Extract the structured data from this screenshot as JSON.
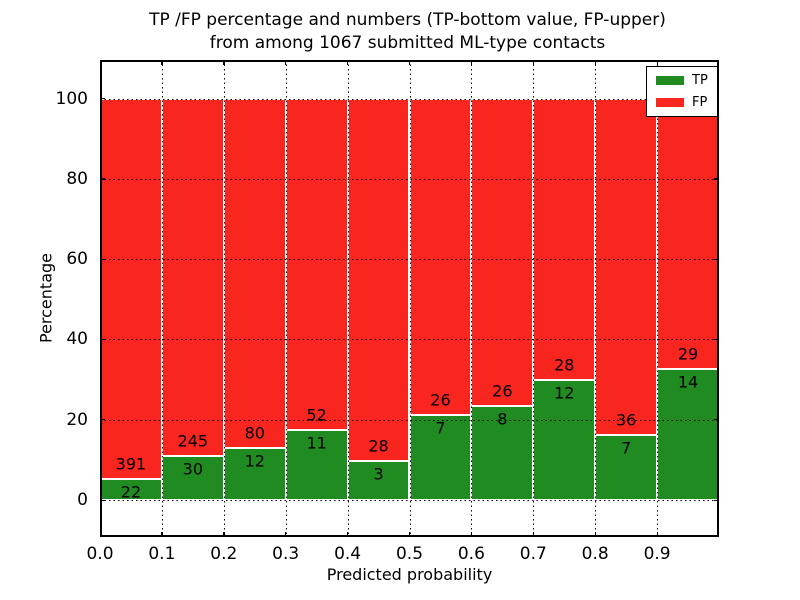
{
  "figure": {
    "title_line1": "TP /FP percentage and numbers (TP-bottom value, FP-upper)",
    "title_line2": "from among 1067 submitted ML-type contacts"
  },
  "chart_data": {
    "type": "bar",
    "subtype": "stacked-percentage-histogram",
    "title": "TP /FP percentage and numbers (TP-bottom value, FP-upper) from among 1067 submitted ML-type contacts",
    "xlabel": "Predicted probability",
    "ylabel": "Percentage",
    "total_submitted_contacts": 1067,
    "bin_width": 0.1,
    "categories": [
      "0.0",
      "0.1",
      "0.2",
      "0.3",
      "0.4",
      "0.5",
      "0.6",
      "0.7",
      "0.8",
      "0.9"
    ],
    "series": [
      {
        "name": "TP",
        "color": "#208b20",
        "counts": [
          22,
          30,
          12,
          11,
          3,
          7,
          8,
          12,
          7,
          14
        ]
      },
      {
        "name": "FP",
        "color": "#f92620",
        "counts": [
          391,
          245,
          80,
          52,
          28,
          26,
          26,
          28,
          36,
          29
        ]
      }
    ],
    "tp_percent_of_bin": [
      5.33,
      10.91,
      13.04,
      17.46,
      9.68,
      21.21,
      23.53,
      30.0,
      16.28,
      32.56
    ],
    "bars_normalized_to": 100,
    "xticks": [
      "0.0",
      "0.1",
      "0.2",
      "0.3",
      "0.4",
      "0.5",
      "0.6",
      "0.7",
      "0.8",
      "0.9"
    ],
    "yticks": [
      0,
      20,
      40,
      60,
      80,
      100
    ],
    "xlim": [
      0.0,
      1.0
    ],
    "ylim": [
      -9,
      110
    ],
    "grid": {
      "style": "dotted",
      "color": "#000000"
    },
    "bar_edge_color": "#ffffff",
    "axis_color": "#000000",
    "background": "#ffffff",
    "legend": {
      "position": "upper-right",
      "entries": [
        {
          "label": "TP",
          "color": "#208b20"
        },
        {
          "label": "FP",
          "color": "#f92620"
        }
      ]
    }
  }
}
